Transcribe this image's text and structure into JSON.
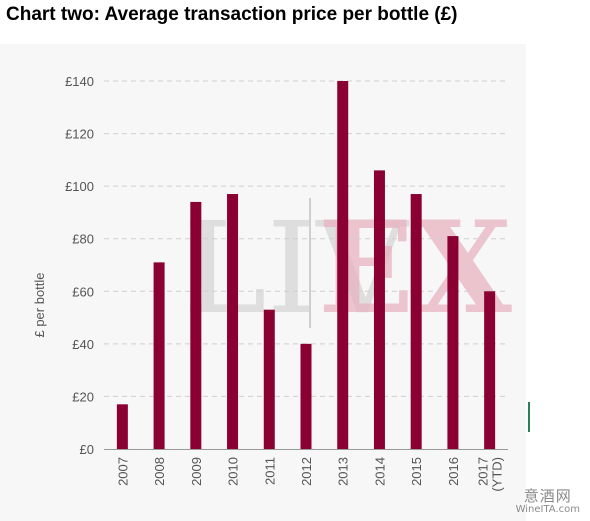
{
  "title": "Chart two: Average transaction price per bottle (£)",
  "watermark": {
    "left": "LIV",
    "right": "EX"
  },
  "credit": {
    "cn": "意酒网",
    "en": "WineITA.com"
  },
  "chart_data": {
    "type": "bar",
    "categories": [
      "2007",
      "2008",
      "2009",
      "2010",
      "2011",
      "2012",
      "2013",
      "2014",
      "2015",
      "2016",
      "2017\n(YTD)"
    ],
    "values": [
      17,
      71,
      94,
      97,
      53,
      40,
      140,
      106,
      97,
      81,
      60
    ],
    "title": "Chart two: Average transaction price per bottle (£)",
    "xlabel": "",
    "ylabel": "£ per bottle",
    "ylim": [
      0,
      140
    ],
    "yticks": [
      0,
      20,
      40,
      60,
      80,
      100,
      120,
      140
    ],
    "ytick_labels": [
      "£0",
      "£20",
      "£40",
      "£60",
      "£80",
      "£100",
      "£120",
      "£140"
    ],
    "grid": true,
    "bar_color": "#8b0033"
  }
}
